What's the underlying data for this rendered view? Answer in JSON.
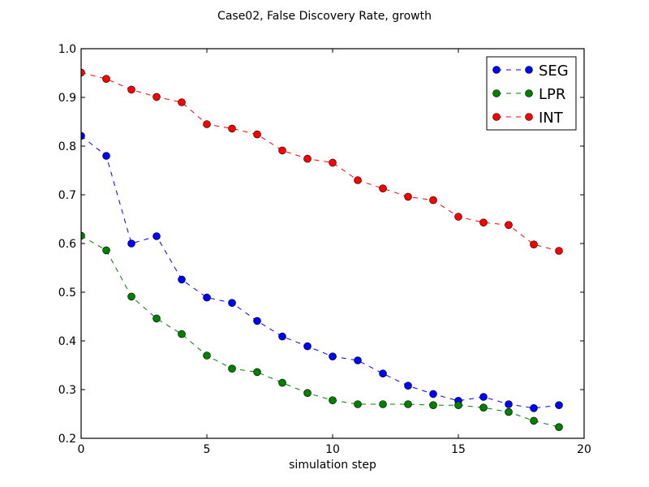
{
  "chart_data": {
    "type": "line",
    "title": "Case02, False Discovery Rate, growth",
    "xlabel": "simulation step",
    "ylabel": "",
    "xlim": [
      0,
      20
    ],
    "ylim": [
      0.2,
      1.0
    ],
    "xticks": [
      0,
      5,
      10,
      15,
      20
    ],
    "yticks": [
      0.2,
      0.3,
      0.4,
      0.5,
      0.6,
      0.7,
      0.8,
      0.9,
      1.0
    ],
    "xtick_labels": [
      "0",
      "5",
      "10",
      "15",
      "20"
    ],
    "ytick_labels": [
      "0.2",
      "0.3",
      "0.4",
      "0.5",
      "0.6",
      "0.7",
      "0.8",
      "0.9",
      "1.0"
    ],
    "grid": false,
    "legend_position": "top-right",
    "x": [
      0,
      1,
      2,
      3,
      4,
      5,
      6,
      7,
      8,
      9,
      10,
      11,
      12,
      13,
      14,
      15,
      16,
      17,
      18,
      19
    ],
    "series": [
      {
        "name": "SEG",
        "color": "#0000ff",
        "values": [
          0.821,
          0.78,
          0.6,
          0.615,
          0.526,
          0.489,
          0.478,
          0.441,
          0.409,
          0.389,
          0.368,
          0.36,
          0.333,
          0.308,
          0.291,
          0.277,
          0.285,
          0.27,
          0.262,
          0.268
        ]
      },
      {
        "name": "LPR",
        "color": "#007f00",
        "values": [
          0.616,
          0.586,
          0.491,
          0.446,
          0.414,
          0.37,
          0.343,
          0.336,
          0.314,
          0.293,
          0.278,
          0.27,
          0.27,
          0.27,
          0.268,
          0.268,
          0.263,
          0.254,
          0.236,
          0.223
        ]
      },
      {
        "name": "INT",
        "color": "#ff0000",
        "values": [
          0.951,
          0.938,
          0.916,
          0.901,
          0.89,
          0.845,
          0.836,
          0.824,
          0.791,
          0.774,
          0.766,
          0.73,
          0.713,
          0.696,
          0.689,
          0.655,
          0.643,
          0.638,
          0.598,
          0.585
        ]
      }
    ]
  }
}
